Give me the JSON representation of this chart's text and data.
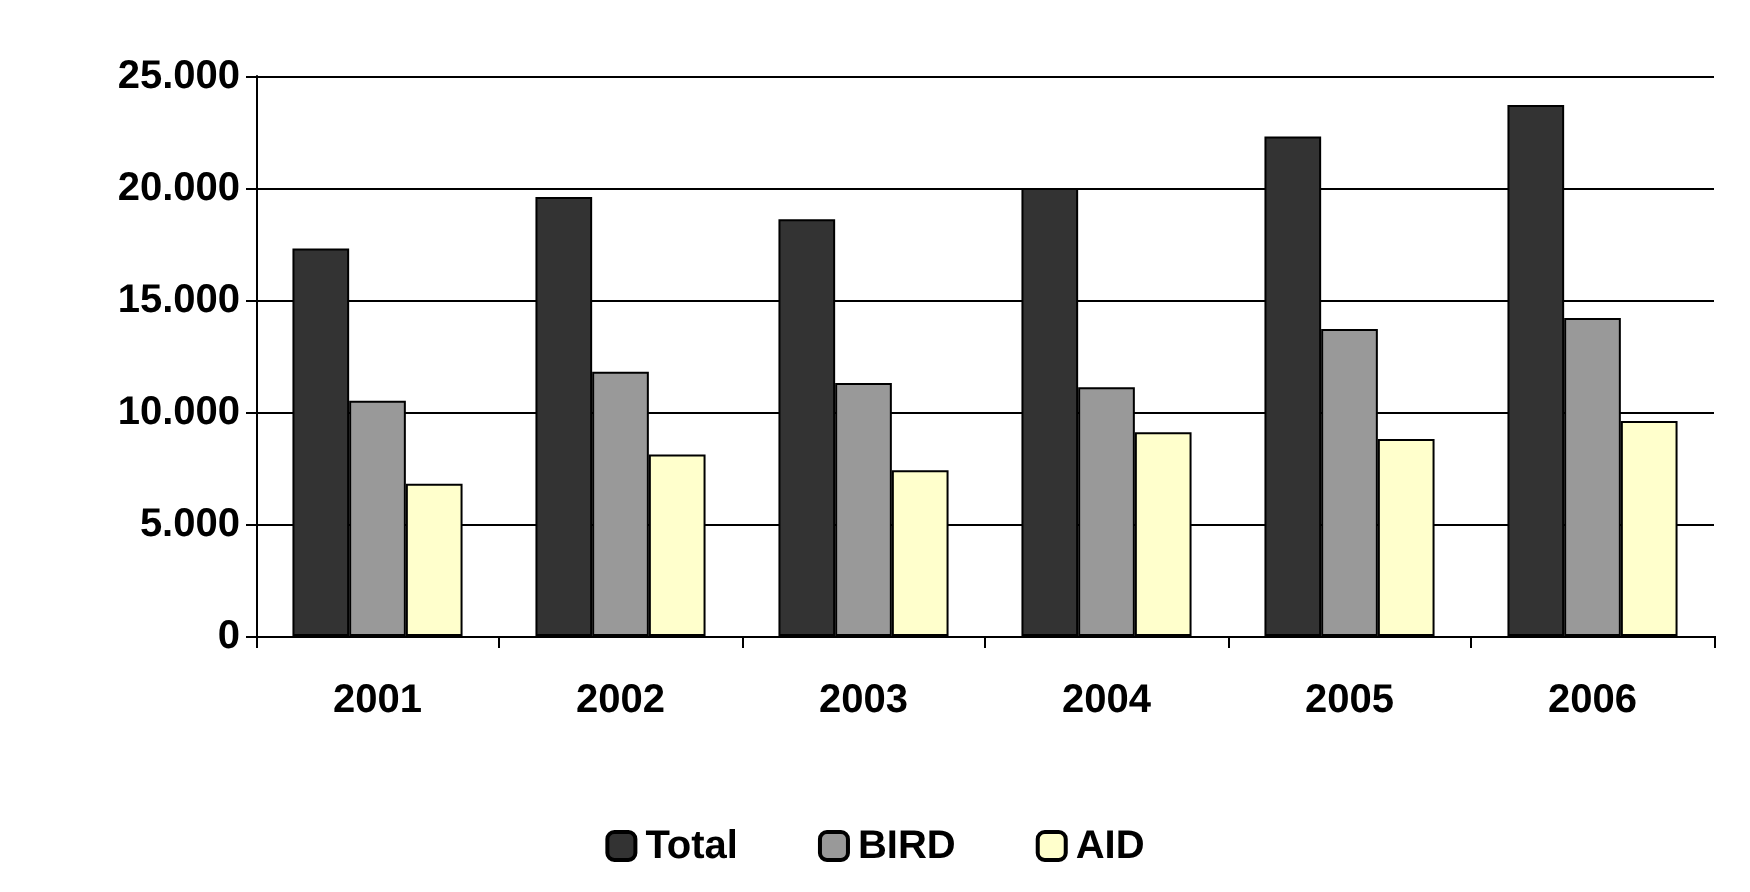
{
  "chart_data": {
    "type": "bar",
    "categories": [
      "2001",
      "2002",
      "2003",
      "2004",
      "2005",
      "2006"
    ],
    "series": [
      {
        "name": "Total",
        "color": "#333333",
        "values": [
          17300,
          19600,
          18600,
          20000,
          22300,
          23700
        ]
      },
      {
        "name": "BIRD",
        "color": "#999999",
        "values": [
          10500,
          11800,
          11300,
          11100,
          13700,
          14200
        ]
      },
      {
        "name": "AID",
        "color": "#ffffcc",
        "values": [
          6800,
          8100,
          7400,
          9100,
          8800,
          9600
        ]
      }
    ],
    "ylim": [
      0,
      25000
    ],
    "yticks": [
      {
        "value": 0,
        "label": "0"
      },
      {
        "value": 5000,
        "label": "5.000"
      },
      {
        "value": 10000,
        "label": "10.000"
      },
      {
        "value": 15000,
        "label": "15.000"
      },
      {
        "value": 20000,
        "label": "20.000"
      },
      {
        "value": 25000,
        "label": "25.000"
      }
    ],
    "grid": "y",
    "legend": "bottom"
  }
}
